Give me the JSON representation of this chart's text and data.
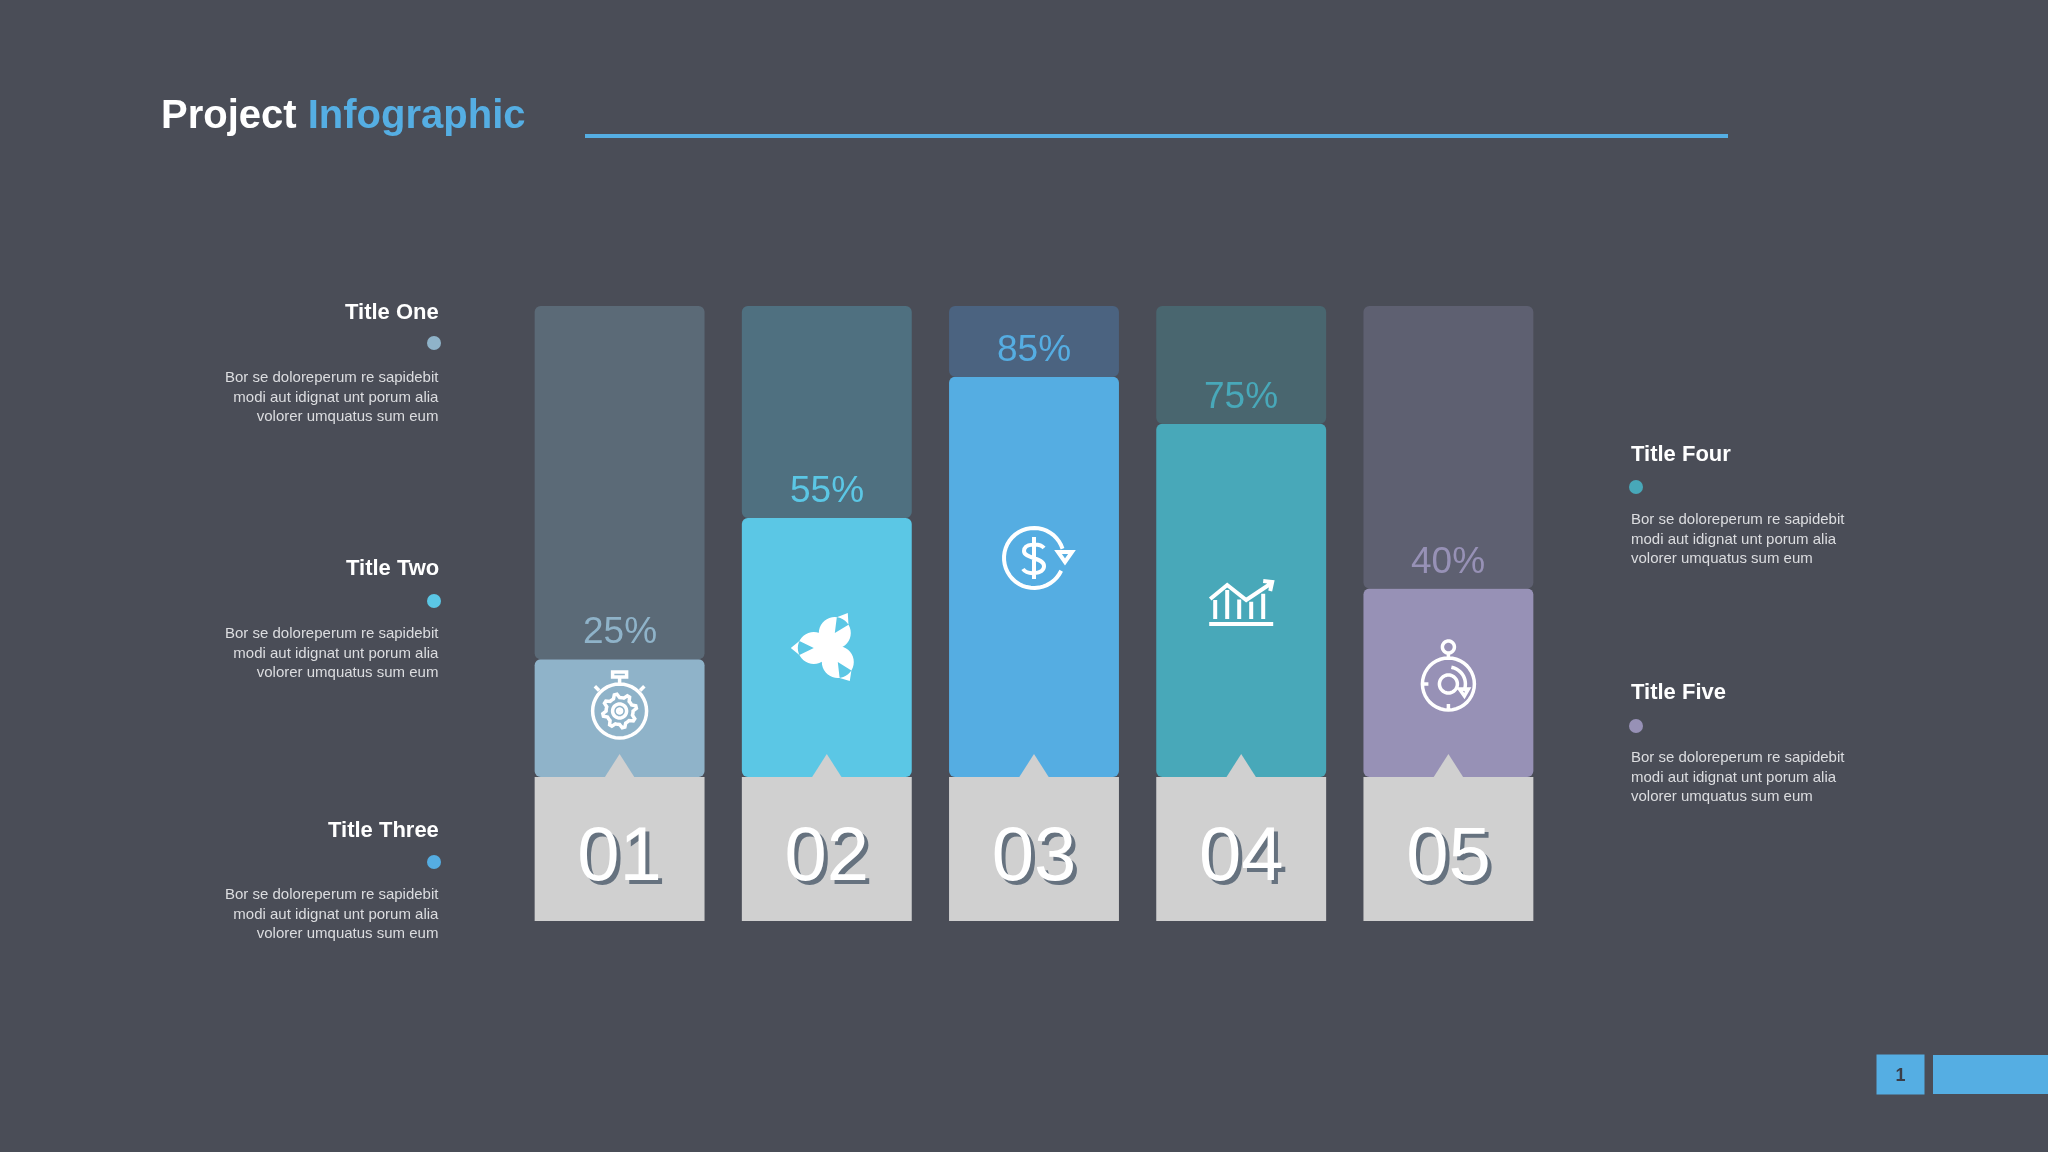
{
  "chart_data": {
    "type": "bar",
    "title": "Project Infographic",
    "categories": [
      "01",
      "02",
      "03",
      "04",
      "05"
    ],
    "stacked": true,
    "series": [
      {
        "colors": [
          "#8fb3c9",
          "#5bc7e5",
          "#55ade2",
          "#48a8b9",
          "#9791b6"
        ],
        "values": [
          25,
          55,
          85,
          75,
          40
        ],
        "value_labels": [
          "25%",
          "55%",
          "85%",
          "75%",
          "40%"
        ]
      },
      {
        "colors": [
          "#5b6a77",
          "#4f7080",
          "#4b6380",
          "#49666f",
          "#5e6071"
        ],
        "values": [
          75,
          45,
          15,
          25,
          60
        ]
      }
    ],
    "ylim": [
      0,
      100
    ],
    "tick_labels": "x",
    "annotations": [
      "Title One",
      "Bor se doloreperum re sapidebit\nmodi aut idignat unt porum alia\nvolorer umquatus sum eum",
      "Title Two",
      "Bor se doloreperum re sapidebit\nmodi aut idignat unt porum alia\nvolorer umquatus sum eum",
      "Title Three",
      "Bor se doloreperum re sapidebit\nmodi aut idignat unt porum alia\nvolorer umquatus sum eum",
      "Title Four",
      "Bor se doloreperum re sapidebit\nmodi aut idignat unt porum alia\nvolorer umquatus sum eum",
      "Title Five",
      "Bor se doloreperum re sapidebit\nmodi aut idignat unt porum alia\nvolorer umquatus sum eum",
      "1"
    ]
  }
}
